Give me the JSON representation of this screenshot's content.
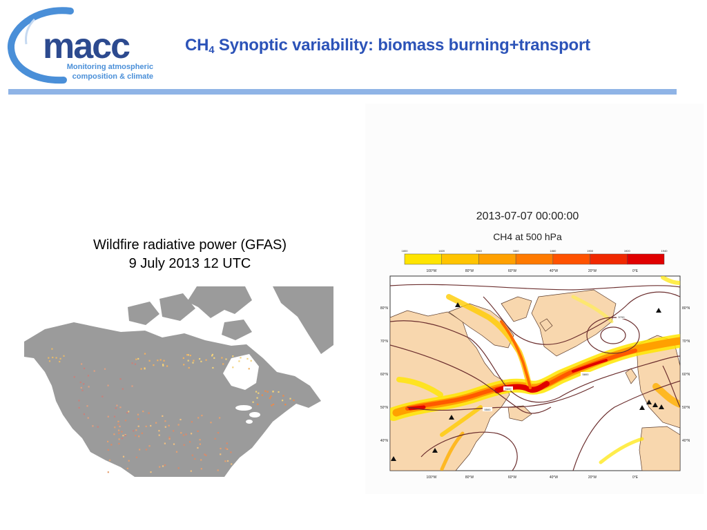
{
  "header": {
    "title_main": "CH",
    "title_sub": "4",
    "title_rest": " Synoptic variability: biomass burning+transport",
    "colors": {
      "title": "#2c53b8",
      "rule": "#8fb4e6",
      "logo_dark": "#2c4a8f",
      "logo_light": "#4a8fd8"
    }
  },
  "logo": {
    "wordmark": "macc",
    "tagline_line1": "Monitoring atmospheric",
    "tagline_line2": "composition & climate"
  },
  "left_panel": {
    "caption_line1": "Wildfire radiative power (GFAS)",
    "caption_line2": "9 July 2013 12 UTC",
    "map_description_icons": [
      "north-america-land",
      "fire-dots"
    ]
  },
  "right_panel": {
    "timestamp": "2013-07-07 00:00:00",
    "field": "CH4 at 500 hPa",
    "colorbar_ticks": [
      "1800",
      "1820",
      "1840",
      "1860",
      "1880",
      "1900",
      "1920",
      "1940"
    ],
    "colorbar_colors": [
      "#ffe400",
      "#ffc400",
      "#ffa000",
      "#ff7a00",
      "#ff5200",
      "#f02800",
      "#e00000"
    ],
    "top_lon_labels": [
      "100°W",
      "80°W",
      "60°W",
      "40°W",
      "20°W",
      "0°E"
    ],
    "bottom_lon_labels": [
      "100°W",
      "80°W",
      "60°W",
      "40°W",
      "20°W",
      "0°E"
    ],
    "left_lat_labels": [
      "80°N",
      "70°N",
      "60°N",
      "50°N",
      "40°N"
    ],
    "right_lat_labels": [
      "80°N",
      "70°N",
      "60°N",
      "50°N",
      "40°N"
    ],
    "contour_labels": [
      "5700",
      "5800",
      "5600",
      "5500"
    ]
  }
}
